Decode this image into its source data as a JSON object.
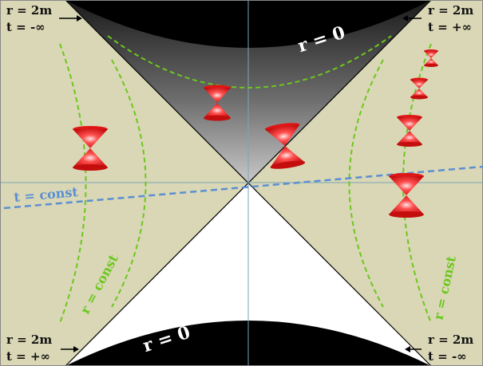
{
  "colors": {
    "exterior": "#d9d7b5",
    "singularity": "#000000",
    "white_hole": "#ffffff",
    "t_const_line": "#5b8fd3",
    "r_const_curve": "#6cc71e",
    "light_cone": "#e01515",
    "axis": "#7aa6b8"
  },
  "labels": {
    "top_left": {
      "r": "r = 2m",
      "t": "t = -∞"
    },
    "top_right": {
      "r": "r = 2m",
      "t": "t = +∞"
    },
    "bottom_left": {
      "r": "r = 2m",
      "t": "t = +∞"
    },
    "bottom_right": {
      "r": "r = 2m",
      "t": "t = -∞"
    },
    "singularity_top": "r = 0",
    "singularity_bottom": "r = 0",
    "t_const": "t = const",
    "r_const_left": "r = const",
    "r_const_right": "r = const"
  },
  "icons": [
    "arrow-icon",
    "light-cone-icon"
  ]
}
